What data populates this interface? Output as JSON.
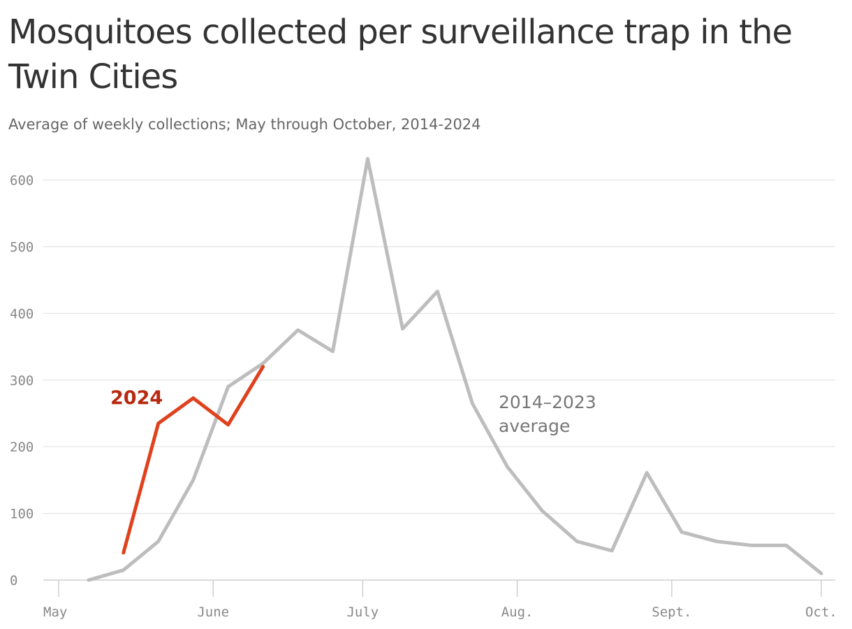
{
  "chart_data": {
    "type": "line",
    "title": "Mosquitoes collected per surveillance trap in the Twin Cities",
    "subtitle": "Average of weekly collections; May through October, 2014-2024",
    "xlabel": "",
    "ylabel": "",
    "x_axis": {
      "type": "date",
      "range": [
        "05-01",
        "10-01"
      ],
      "ticks": [
        {
          "date": "05-01",
          "label": "May"
        },
        {
          "date": "06-01",
          "label": "June"
        },
        {
          "date": "07-01",
          "label": "July"
        },
        {
          "date": "08-01",
          "label": "Aug."
        },
        {
          "date": "09-01",
          "label": "Sept."
        },
        {
          "date": "10-01",
          "label": "Oct."
        }
      ]
    },
    "y_axis": {
      "range": [
        0,
        630
      ],
      "ticks": [
        0,
        100,
        200,
        300,
        400,
        500,
        600
      ]
    },
    "grid": true,
    "series": [
      {
        "name": "2014–2023 average",
        "label_lines": [
          "2014–2023",
          "average"
        ],
        "color": "#bdbdbd",
        "points": [
          {
            "x": "05-07",
            "y": 0
          },
          {
            "x": "05-14",
            "y": 15
          },
          {
            "x": "05-21",
            "y": 58
          },
          {
            "x": "05-28",
            "y": 150
          },
          {
            "x": "06-04",
            "y": 290
          },
          {
            "x": "06-11",
            "y": 325
          },
          {
            "x": "06-18",
            "y": 375
          },
          {
            "x": "06-25",
            "y": 343
          },
          {
            "x": "07-02",
            "y": 632
          },
          {
            "x": "07-09",
            "y": 377
          },
          {
            "x": "07-16",
            "y": 433
          },
          {
            "x": "07-23",
            "y": 265
          },
          {
            "x": "07-30",
            "y": 170
          },
          {
            "x": "08-06",
            "y": 104
          },
          {
            "x": "08-13",
            "y": 58
          },
          {
            "x": "08-20",
            "y": 44
          },
          {
            "x": "08-27",
            "y": 161
          },
          {
            "x": "09-03",
            "y": 72
          },
          {
            "x": "09-10",
            "y": 58
          },
          {
            "x": "09-17",
            "y": 52
          },
          {
            "x": "09-24",
            "y": 52
          },
          {
            "x": "10-01",
            "y": 10
          }
        ]
      },
      {
        "name": "2024",
        "label_lines": [
          "2024"
        ],
        "color": "#e0411d",
        "label_color": "#b8290f",
        "points": [
          {
            "x": "05-14",
            "y": 41
          },
          {
            "x": "05-21",
            "y": 235
          },
          {
            "x": "05-28",
            "y": 273
          },
          {
            "x": "06-04",
            "y": 233
          },
          {
            "x": "06-11",
            "y": 320
          }
        ]
      }
    ]
  }
}
